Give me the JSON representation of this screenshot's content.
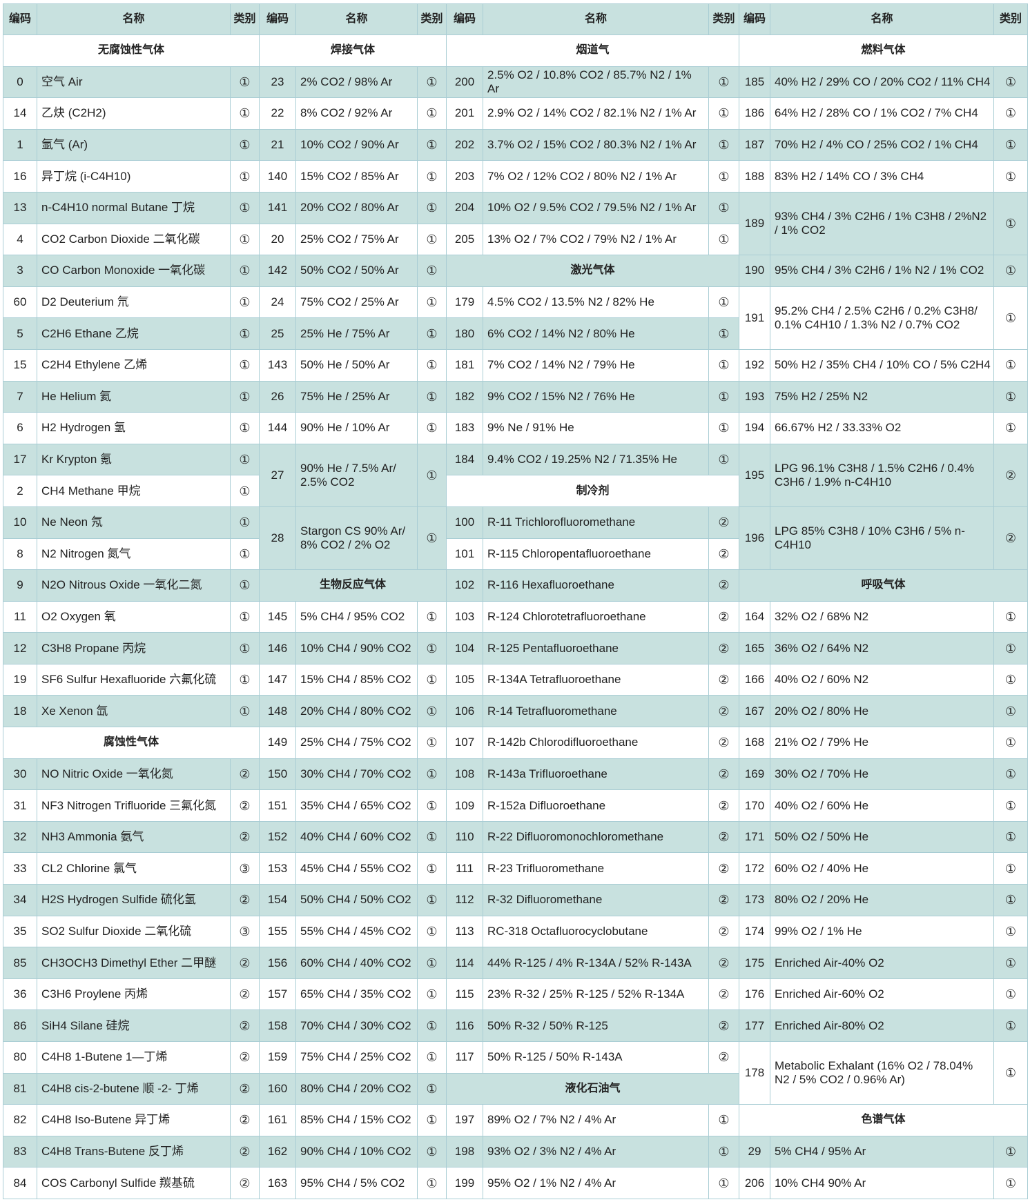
{
  "headers": {
    "code": "编码",
    "name": "名称",
    "category": "类别"
  },
  "colors": {
    "shade": "#c8e1df",
    "border": "#a9cdd4"
  },
  "groups": [
    {
      "rows": [
        {
          "section": "无腐蚀性气体"
        },
        {
          "code": "0",
          "name": "空气 Air",
          "cat": "①"
        },
        {
          "code": "14",
          "name": "乙炔 (C2H2)",
          "cat": "①"
        },
        {
          "code": "1",
          "name": "氩气 (Ar)",
          "cat": "①"
        },
        {
          "code": "16",
          "name": "异丁烷 (i-C4H10)",
          "cat": "①"
        },
        {
          "code": "13",
          "name": "n-C4H10 normal Butane 丁烷",
          "cat": "①"
        },
        {
          "code": "4",
          "name": "CO2 Carbon Dioxide 二氧化碳",
          "cat": "①"
        },
        {
          "code": "3",
          "name": "CO Carbon Monoxide 一氧化碳",
          "cat": "①"
        },
        {
          "code": "60",
          "name": "D2 Deuterium 氘",
          "cat": "①"
        },
        {
          "code": "5",
          "name": "C2H6 Ethane 乙烷",
          "cat": "①"
        },
        {
          "code": "15",
          "name": "C2H4 Ethylene 乙烯",
          "cat": "①"
        },
        {
          "code": "7",
          "name": "He Helium 氦",
          "cat": "①"
        },
        {
          "code": "6",
          "name": "H2 Hydrogen 氢",
          "cat": "①"
        },
        {
          "code": "17",
          "name": "Kr Krypton 氪",
          "cat": "①"
        },
        {
          "code": "2",
          "name": "CH4 Methane 甲烷",
          "cat": "①"
        },
        {
          "code": "10",
          "name": "Ne Neon 氖",
          "cat": "①"
        },
        {
          "code": "8",
          "name": "N2 Nitrogen 氮气",
          "cat": "①"
        },
        {
          "code": "9",
          "name": "N2O Nitrous Oxide 一氧化二氮",
          "cat": "①"
        },
        {
          "code": "11",
          "name": "O2 Oxygen 氧",
          "cat": "①"
        },
        {
          "code": "12",
          "name": "C3H8 Propane 丙烷",
          "cat": "①"
        },
        {
          "code": "19",
          "name": "SF6 Sulfur Hexafluoride 六氟化硫",
          "cat": "①"
        },
        {
          "code": "18",
          "name": "Xe Xenon 氙",
          "cat": "①"
        },
        {
          "section": "腐蚀性气体"
        },
        {
          "code": "30",
          "name": "NO Nitric Oxide 一氧化氮",
          "cat": "②"
        },
        {
          "code": "31",
          "name": "NF3 Nitrogen Trifluoride 三氟化氮",
          "cat": "②"
        },
        {
          "code": "32",
          "name": "NH3 Ammonia 氨气",
          "cat": "②"
        },
        {
          "code": "33",
          "name": "CL2 Chlorine 氯气",
          "cat": "③"
        },
        {
          "code": "34",
          "name": "H2S Hydrogen Sulfide 硫化氢",
          "cat": "②"
        },
        {
          "code": "35",
          "name": "SO2 Sulfur Dioxide 二氧化硫",
          "cat": "③"
        },
        {
          "code": "85",
          "name": "CH3OCH3 Dimethyl Ether 二甲醚",
          "cat": "②"
        },
        {
          "code": "36",
          "name": "C3H6 Proylene 丙烯",
          "cat": "②"
        },
        {
          "code": "86",
          "name": "SiH4 Silane 硅烷",
          "cat": "②"
        },
        {
          "code": "80",
          "name": "C4H8 1-Butene 1—丁烯",
          "cat": "②"
        },
        {
          "code": "81",
          "name": "C4H8 cis-2-butene 顺 -2- 丁烯",
          "cat": "②"
        },
        {
          "code": "82",
          "name": "C4H8 Iso-Butene 异丁烯",
          "cat": "②"
        },
        {
          "code": "83",
          "name": "C4H8 Trans-Butene 反丁烯",
          "cat": "②"
        },
        {
          "code": "84",
          "name": "COS Carbonyl Sulfide 羰基硫",
          "cat": "②"
        }
      ]
    },
    {
      "rows": [
        {
          "section": "焊接气体"
        },
        {
          "code": "23",
          "name": "2% CO2 / 98% Ar",
          "cat": "①"
        },
        {
          "code": "22",
          "name": "8% CO2 / 92% Ar",
          "cat": "①"
        },
        {
          "code": "21",
          "name": "10% CO2 / 90% Ar",
          "cat": "①"
        },
        {
          "code": "140",
          "name": "15% CO2 / 85% Ar",
          "cat": "①"
        },
        {
          "code": "141",
          "name": "20% CO2 / 80% Ar",
          "cat": "①"
        },
        {
          "code": "20",
          "name": "25% CO2 / 75% Ar",
          "cat": "①"
        },
        {
          "code": "142",
          "name": "50% CO2 / 50% Ar",
          "cat": "①"
        },
        {
          "code": "24",
          "name": "75% CO2 / 25% Ar",
          "cat": "①"
        },
        {
          "code": "25",
          "name": "25% He / 75% Ar",
          "cat": "①"
        },
        {
          "code": "143",
          "name": "50% He / 50% Ar",
          "cat": "①"
        },
        {
          "code": "26",
          "name": "75% He / 25% Ar",
          "cat": "①"
        },
        {
          "code": "144",
          "name": "90% He / 10% Ar",
          "cat": "①"
        },
        {
          "code": "27",
          "name": "90% He / 7.5% Ar/ 2.5% CO2",
          "cat": "①",
          "rowspan": 2
        },
        {
          "code": "28",
          "name": "Stargon CS 90% Ar/ 8% CO2 / 2% O2",
          "cat": "①",
          "rowspan": 2
        },
        {
          "section": "生物反应气体"
        },
        {
          "code": "145",
          "name": "5% CH4 / 95% CO2",
          "cat": "①"
        },
        {
          "code": "146",
          "name": "10% CH4 / 90% CO2",
          "cat": "①"
        },
        {
          "code": "147",
          "name": "15% CH4 / 85% CO2",
          "cat": "①"
        },
        {
          "code": "148",
          "name": "20% CH4 / 80% CO2",
          "cat": "①"
        },
        {
          "code": "149",
          "name": "25% CH4 / 75% CO2",
          "cat": "①"
        },
        {
          "code": "150",
          "name": "30% CH4 / 70% CO2",
          "cat": "①"
        },
        {
          "code": "151",
          "name": "35% CH4 / 65% CO2",
          "cat": "①"
        },
        {
          "code": "152",
          "name": "40% CH4 / 60% CO2",
          "cat": "①"
        },
        {
          "code": "153",
          "name": "45% CH4 / 55% CO2",
          "cat": "①"
        },
        {
          "code": "154",
          "name": "50% CH4 / 50% CO2",
          "cat": "①"
        },
        {
          "code": "155",
          "name": "55% CH4 / 45% CO2",
          "cat": "①"
        },
        {
          "code": "156",
          "name": "60% CH4 / 40% CO2",
          "cat": "①"
        },
        {
          "code": "157",
          "name": "65% CH4 / 35% CO2",
          "cat": "①"
        },
        {
          "code": "158",
          "name": "70% CH4 / 30% CO2",
          "cat": "①"
        },
        {
          "code": "159",
          "name": "75% CH4 / 25% CO2",
          "cat": "①"
        },
        {
          "code": "160",
          "name": "80% CH4 / 20% CO2",
          "cat": "①"
        },
        {
          "code": "161",
          "name": "85% CH4 / 15% CO2",
          "cat": "①"
        },
        {
          "code": "162",
          "name": "90% CH4 / 10% CO2",
          "cat": "①"
        },
        {
          "code": "163",
          "name": "95% CH4 /  5% CO2",
          "cat": "①"
        }
      ]
    },
    {
      "rows": [
        {
          "section": "烟道气"
        },
        {
          "code": "200",
          "name": "2.5% O2 / 10.8% CO2 / 85.7% N2 / 1% Ar",
          "cat": "①"
        },
        {
          "code": "201",
          "name": "2.9% O2 / 14% CO2 / 82.1% N2 / 1% Ar",
          "cat": "①"
        },
        {
          "code": "202",
          "name": "3.7% O2 / 15% CO2 / 80.3% N2 / 1% Ar",
          "cat": "①"
        },
        {
          "code": "203",
          "name": "7% O2 / 12% CO2 / 80% N2 / 1% Ar",
          "cat": "①"
        },
        {
          "code": "204",
          "name": "10% O2 / 9.5% CO2 / 79.5% N2 / 1% Ar",
          "cat": "①"
        },
        {
          "code": "205",
          "name": "13% O2 / 7% CO2 / 79% N2 / 1% Ar",
          "cat": "①"
        },
        {
          "section": "激光气体"
        },
        {
          "code": "179",
          "name": "4.5% CO2 / 13.5% N2 / 82% He",
          "cat": "①"
        },
        {
          "code": "180",
          "name": "6% CO2 / 14% N2 / 80% He",
          "cat": "①"
        },
        {
          "code": "181",
          "name": "7% CO2 / 14% N2 / 79% He",
          "cat": "①"
        },
        {
          "code": "182",
          "name": "9% CO2 / 15% N2 / 76% He",
          "cat": "①"
        },
        {
          "code": "183",
          "name": "9% Ne / 91% He",
          "cat": "①"
        },
        {
          "code": "184",
          "name": "9.4% CO2 / 19.25% N2 / 71.35% He",
          "cat": "①"
        },
        {
          "section": "制冷剂"
        },
        {
          "code": "100",
          "name": "R-11 Trichlorofluoromethane",
          "cat": "②"
        },
        {
          "code": "101",
          "name": "R-115 Chloropentafluoroethane",
          "cat": "②"
        },
        {
          "code": "102",
          "name": "R-116 Hexafluoroethane",
          "cat": "②"
        },
        {
          "code": "103",
          "name": "R-124 Chlorotetrafluoroethane",
          "cat": "②"
        },
        {
          "code": "104",
          "name": "R-125 Pentafluoroethane",
          "cat": "②"
        },
        {
          "code": "105",
          "name": "R-134A Tetrafluoroethane",
          "cat": "②"
        },
        {
          "code": "106",
          "name": "R-14 Tetrafluoromethane",
          "cat": "②"
        },
        {
          "code": "107",
          "name": "R-142b Chlorodifluoroethane",
          "cat": "②"
        },
        {
          "code": "108",
          "name": "R-143a Trifluoroethane",
          "cat": "②"
        },
        {
          "code": "109",
          "name": "R-152a Difluoroethane",
          "cat": "②"
        },
        {
          "code": "110",
          "name": "R-22 Difluoromonochloromethane",
          "cat": "②"
        },
        {
          "code": "111",
          "name": "R-23 Trifluoromethane",
          "cat": "②"
        },
        {
          "code": "112",
          "name": "R-32 Difluoromethane",
          "cat": "②"
        },
        {
          "code": "113",
          "name": "RC-318 Octafluorocyclobutane",
          "cat": "②"
        },
        {
          "code": "114",
          "name": "44% R-125 / 4% R-134A / 52% R-143A",
          "cat": "②"
        },
        {
          "code": "115",
          "name": "23% R-32 / 25% R-125 / 52% R-134A",
          "cat": "②"
        },
        {
          "code": "116",
          "name": "50% R-32 / 50% R-125",
          "cat": "②"
        },
        {
          "code": "117",
          "name": "50% R-125 / 50% R-143A",
          "cat": "②"
        },
        {
          "section": "液化石油气"
        },
        {
          "code": "197",
          "name": "89% O2 / 7% N2 / 4% Ar",
          "cat": "①"
        },
        {
          "code": "198",
          "name": "93% O2 / 3% N2 / 4% Ar",
          "cat": "①"
        },
        {
          "code": "199",
          "name": "95% O2 / 1% N2 / 4% Ar",
          "cat": "①"
        }
      ]
    },
    {
      "rows": [
        {
          "section": "燃料气体"
        },
        {
          "code": "185",
          "name": "40% H2 / 29% CO / 20% CO2 / 11% CH4",
          "cat": "①"
        },
        {
          "code": "186",
          "name": "64% H2 / 28% CO / 1% CO2 / 7% CH4",
          "cat": "①"
        },
        {
          "code": "187",
          "name": "70% H2 / 4% CO / 25% CO2 / 1% CH4",
          "cat": "①"
        },
        {
          "code": "188",
          "name": "83% H2 / 14% CO / 3% CH4",
          "cat": "①"
        },
        {
          "code": "189",
          "name": "93% CH4 / 3% C2H6 / 1% C3H8 / 2%N2 / 1% CO2",
          "cat": "①",
          "rowspan": 2
        },
        {
          "code": "190",
          "name": "95% CH4 / 3% C2H6 / 1% N2 / 1% CO2",
          "cat": "①"
        },
        {
          "code": "191",
          "name": "95.2% CH4 / 2.5% C2H6 / 0.2% C3H8/ 0.1% C4H10 / 1.3% N2 / 0.7% CO2",
          "cat": "①",
          "rowspan": 2
        },
        {
          "code": "192",
          "name": "50% H2 / 35% CH4 / 10% CO / 5% C2H4",
          "cat": "①"
        },
        {
          "code": "193",
          "name": "75% H2 / 25% N2",
          "cat": "①"
        },
        {
          "code": "194",
          "name": "66.67% H2 / 33.33% O2",
          "cat": "①"
        },
        {
          "code": "195",
          "name": "LPG 96.1% C3H8 / 1.5% C2H6 / 0.4% C3H6 / 1.9% n-C4H10",
          "cat": "②",
          "rowspan": 2
        },
        {
          "code": "196",
          "name": "LPG 85% C3H8 / 10% C3H6 / 5% n-C4H10",
          "cat": "②",
          "rowspan": 2
        },
        {
          "section": "呼吸气体"
        },
        {
          "code": "164",
          "name": "32% O2 / 68% N2",
          "cat": "①"
        },
        {
          "code": "165",
          "name": "36% O2 / 64% N2",
          "cat": "①"
        },
        {
          "code": "166",
          "name": "40% O2 / 60% N2",
          "cat": "①"
        },
        {
          "code": "167",
          "name": "20% O2 / 80% He",
          "cat": "①"
        },
        {
          "code": "168",
          "name": "21% O2 / 79% He",
          "cat": "①"
        },
        {
          "code": "169",
          "name": "30% O2 / 70% He",
          "cat": "①"
        },
        {
          "code": "170",
          "name": "40% O2 / 60% He",
          "cat": "①"
        },
        {
          "code": "171",
          "name": "50% O2 / 50% He",
          "cat": "①"
        },
        {
          "code": "172",
          "name": "60% O2 / 40% He",
          "cat": "①"
        },
        {
          "code": "173",
          "name": "80% O2 / 20% He",
          "cat": "①"
        },
        {
          "code": "174",
          "name": "99% O2 / 1% He",
          "cat": "①"
        },
        {
          "code": "175",
          "name": "Enriched Air-40% O2",
          "cat": "①"
        },
        {
          "code": "176",
          "name": "Enriched Air-60% O2",
          "cat": "①"
        },
        {
          "code": "177",
          "name": "Enriched Air-80% O2",
          "cat": "①"
        },
        {
          "code": "178",
          "name": "Metabolic Exhalant (16% O2 / 78.04% N2 / 5% CO2 / 0.96% Ar)",
          "cat": "①",
          "rowspan": 2
        },
        {
          "section": "色谱气体"
        },
        {
          "code": "29",
          "name": "5% CH4 / 95% Ar",
          "cat": "①"
        },
        {
          "code": "206",
          "name": "10% CH4 90% Ar",
          "cat": "①"
        }
      ]
    }
  ]
}
